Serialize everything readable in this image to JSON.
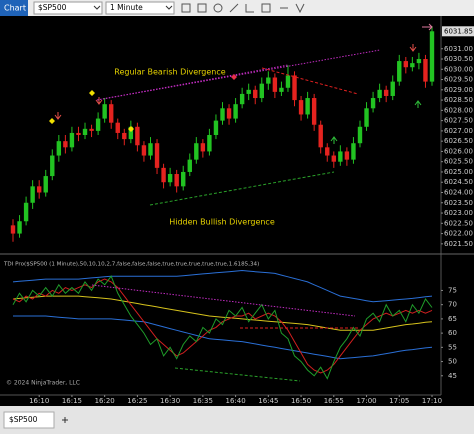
{
  "window": {
    "title": "Chart",
    "instrument": "$SP500",
    "interval": "1 Minute"
  },
  "tabs": [
    "$SP500"
  ],
  "chart_data": [
    {
      "type": "candlestick",
      "categories": [
        null,
        null,
        null,
        null,
        "16:10",
        null,
        null,
        null,
        null,
        "16:15",
        null,
        null,
        null,
        null,
        "16:20",
        null,
        null,
        null,
        null,
        "16:25",
        null,
        null,
        null,
        null,
        "16:30",
        null,
        null,
        null,
        null,
        "16:35",
        null,
        null,
        null,
        null,
        "16:40",
        null,
        null,
        null,
        null,
        "16:45",
        null,
        null,
        null,
        null,
        "16:50",
        null,
        null,
        null,
        null,
        "16:55",
        null,
        null,
        null,
        null,
        "17:00",
        null,
        null,
        null,
        null,
        "17:05",
        null,
        null,
        null,
        null,
        "17:10"
      ],
      "open": [
        6022.4,
        6022.0,
        6022.6,
        6023.5,
        6024.3,
        6024.0,
        6024.8,
        6025.8,
        6026.5,
        6026.2,
        6026.9,
        6026.8,
        6027.1,
        6027.0,
        6027.6,
        6028.3,
        6027.4,
        6026.9,
        6026.6,
        6027.2,
        6026.3,
        6025.8,
        6026.4,
        6025.2,
        6024.5,
        6024.9,
        6024.3,
        6025.0,
        6025.6,
        6026.4,
        6026.0,
        6026.8,
        6027.5,
        6028.1,
        6027.6,
        6028.3,
        6028.8,
        6029.0,
        6028.6,
        6029.3,
        6029.6,
        6028.9,
        6029.1,
        6029.7,
        6028.5,
        6027.8,
        6028.6,
        6027.3,
        6026.2,
        6025.8,
        6025.5,
        6026.0,
        6025.6,
        6026.4,
        6027.2,
        6028.1,
        6028.6,
        6029.0,
        6028.7,
        6029.4,
        6030.4,
        6030.1,
        6030.3,
        6030.5,
        6029.4
      ],
      "close": [
        6022.0,
        6022.6,
        6023.5,
        6024.3,
        6024.0,
        6024.8,
        6025.8,
        6026.5,
        6026.2,
        6026.9,
        6026.8,
        6027.1,
        6027.0,
        6027.6,
        6028.3,
        6027.4,
        6026.9,
        6026.6,
        6027.2,
        6026.3,
        6025.8,
        6026.4,
        6025.2,
        6024.5,
        6024.9,
        6024.3,
        6025.0,
        6025.6,
        6026.4,
        6026.0,
        6026.8,
        6027.5,
        6028.1,
        6027.6,
        6028.3,
        6028.8,
        6029.0,
        6028.6,
        6029.3,
        6029.6,
        6028.9,
        6029.1,
        6029.7,
        6028.5,
        6027.8,
        6028.6,
        6027.3,
        6026.2,
        6025.8,
        6025.5,
        6026.0,
        6025.6,
        6026.4,
        6027.2,
        6028.1,
        6028.6,
        6029.0,
        6028.7,
        6029.4,
        6030.4,
        6030.1,
        6030.3,
        6030.5,
        6029.4,
        6031.85
      ],
      "high": [
        6022.7,
        6022.9,
        6023.8,
        6024.6,
        6024.6,
        6025.1,
        6026.1,
        6026.8,
        6026.8,
        6027.2,
        6027.2,
        6027.4,
        6027.3,
        6027.9,
        6028.6,
        6028.5,
        6027.6,
        6027.1,
        6027.5,
        6027.4,
        6026.5,
        6026.7,
        6026.6,
        6025.4,
        6025.2,
        6025.1,
        6025.3,
        6025.9,
        6026.7,
        6026.6,
        6027.1,
        6027.8,
        6028.4,
        6028.3,
        6028.6,
        6029.1,
        6029.3,
        6029.2,
        6029.6,
        6029.9,
        6029.8,
        6029.4,
        6030.2,
        6029.9,
        6028.7,
        6028.9,
        6028.8,
        6027.5,
        6026.4,
        6026.0,
        6026.3,
        6026.2,
        6026.7,
        6027.5,
        6028.4,
        6028.9,
        6029.3,
        6029.2,
        6029.7,
        6030.7,
        6030.6,
        6030.6,
        6030.8,
        6030.7,
        6032.1
      ],
      "low": [
        6021.6,
        6021.8,
        6022.4,
        6023.2,
        6023.7,
        6023.8,
        6024.6,
        6025.5,
        6025.9,
        6026.0,
        6026.5,
        6026.6,
        6026.7,
        6026.8,
        6027.4,
        6027.1,
        6026.6,
        6026.3,
        6026.4,
        6026.0,
        6025.5,
        6025.6,
        6024.9,
        6024.2,
        6024.3,
        6024.0,
        6024.1,
        6024.8,
        6025.4,
        6025.7,
        6025.8,
        6026.6,
        6027.3,
        6027.3,
        6027.4,
        6028.1,
        6028.5,
        6028.3,
        6028.4,
        6029.0,
        6028.6,
        6028.7,
        6028.9,
        6028.2,
        6027.5,
        6027.6,
        6027.0,
        6025.9,
        6025.5,
        6025.2,
        6025.3,
        6025.3,
        6025.4,
        6026.2,
        6027.0,
        6027.9,
        6028.4,
        6028.4,
        6028.5,
        6029.2,
        6029.8,
        6029.9,
        6030.0,
        6029.1,
        6029.2
      ],
      "up_color": "#22c322",
      "down_color": "#e5231f",
      "last_price": 6031.85,
      "ylim": [
        6021.2,
        6032.4
      ],
      "yticks": [
        {
          "value": 6021.5,
          "label": "6021.50"
        },
        {
          "value": 6022.0,
          "label": "6022.00"
        },
        {
          "value": 6022.5,
          "label": "6022.50"
        },
        {
          "value": 6023.0,
          "label": "6023.00"
        },
        {
          "value": 6023.5,
          "label": "6023.50"
        },
        {
          "value": 6024.0,
          "label": "6024.00"
        },
        {
          "value": 6024.5,
          "label": "6024.50"
        },
        {
          "value": 6025.0,
          "label": "6025.00"
        },
        {
          "value": 6025.5,
          "label": "6025.50"
        },
        {
          "value": 6026.0,
          "label": "6026.00"
        },
        {
          "value": 6026.5,
          "label": "6026.50"
        },
        {
          "value": 6027.0,
          "label": "6027.00"
        },
        {
          "value": 6027.5,
          "label": "6027.50"
        },
        {
          "value": 6028.0,
          "label": "6028.00"
        },
        {
          "value": 6028.5,
          "label": "6028.50"
        },
        {
          "value": 6029.0,
          "label": "6029.00"
        },
        {
          "value": 6029.5,
          "label": "6029.50"
        },
        {
          "value": 6030.0,
          "label": "6030.00"
        },
        {
          "value": 6030.5,
          "label": "6030.50"
        },
        {
          "value": 6031.0,
          "label": "6031.00"
        }
      ],
      "annotations": [
        "Regular Bearish Divergence",
        "Hidden Bullish Divergence"
      ]
    },
    {
      "type": "line",
      "title": "TDI Pro($SP500 (1 Minute),50,10,10,2,7,false,false,false,true,true,true,true,true,1.6185,34)",
      "copyright": "© 2024 NinjaTrader, LLC",
      "ylim": [
        40,
        85
      ],
      "yticks": [
        45,
        50,
        55,
        60,
        65,
        70,
        75
      ],
      "series": [
        {
          "color": "#2a6fd6",
          "values": [
            78,
            78.2,
            78.4,
            78.6,
            78.8,
            79,
            79,
            79,
            79,
            79,
            79,
            79.2,
            79.4,
            79.6,
            79.8,
            80,
            80,
            80,
            80,
            80,
            80,
            80,
            80,
            80,
            80,
            80,
            80.2,
            80.4,
            80.6,
            80.8,
            81,
            81.2,
            81.4,
            81.6,
            81.8,
            82,
            81.8,
            81.6,
            81.4,
            81.2,
            81,
            80.4,
            79.8,
            79.2,
            78.6,
            78,
            77,
            76,
            75,
            74,
            73,
            72.6,
            72.2,
            71.8,
            71.4,
            71,
            71.2,
            71.4,
            71.6,
            71.8,
            72,
            72.2,
            72.5,
            72.8,
            73
          ]
        },
        {
          "color": "#2a6fd6",
          "values": [
            66,
            66,
            66,
            66,
            66,
            66,
            65.8,
            65.6,
            65.4,
            65.2,
            65,
            65,
            65,
            65,
            65,
            65,
            64.8,
            64.6,
            64.4,
            64.2,
            64,
            63.4,
            62.8,
            62.2,
            61.6,
            61,
            60.4,
            59.8,
            59.2,
            58.6,
            58,
            57.8,
            57.6,
            57.4,
            57.2,
            57,
            56.6,
            56.2,
            55.8,
            55.4,
            55,
            54.6,
            54.2,
            53.8,
            53.4,
            53,
            52.6,
            52.2,
            51.8,
            51.4,
            51,
            51.2,
            51.4,
            51.6,
            51.8,
            52,
            52.4,
            52.8,
            53.2,
            53.6,
            54,
            54.2,
            54.5,
            54.8,
            55
          ]
        },
        {
          "color": "#d6c21c",
          "values": [
            72,
            72.2,
            72.4,
            72.6,
            72.8,
            73,
            73,
            73,
            73,
            73,
            73,
            72.8,
            72.6,
            72.4,
            72.2,
            72,
            71.6,
            71.2,
            70.8,
            70.4,
            70,
            69.6,
            69.2,
            68.8,
            68.4,
            68,
            67.6,
            67.2,
            66.8,
            66.4,
            66,
            65.8,
            65.6,
            65.4,
            65.2,
            65,
            64.8,
            64.6,
            64.4,
            64.2,
            64,
            63.8,
            63.6,
            63.4,
            63.2,
            63,
            62.6,
            62.2,
            61.8,
            61.4,
            61,
            61,
            61,
            61,
            61,
            61,
            61.4,
            61.8,
            62.2,
            62.6,
            63,
            63.2,
            63.5,
            63.8,
            64
          ]
        },
        {
          "color": "#d11f1f",
          "values": [
            72,
            71,
            73,
            72,
            74,
            73,
            75,
            74,
            76,
            75,
            76,
            77,
            76,
            78,
            79,
            78,
            76,
            73,
            70,
            67,
            64,
            61,
            58,
            56,
            54,
            52,
            53,
            55,
            57,
            59,
            61,
            62,
            64,
            65,
            66,
            66,
            67,
            65,
            66,
            67,
            66,
            64,
            61,
            57,
            53,
            49,
            47,
            46,
            47,
            49,
            52,
            55,
            58,
            61,
            63,
            65,
            66,
            67,
            66,
            67,
            68,
            67,
            68,
            67,
            68
          ]
        },
        {
          "color": "#1f9d2a",
          "values": [
            70,
            74,
            71,
            75,
            73,
            76,
            73,
            77,
            74,
            76,
            74,
            78,
            75,
            79,
            77,
            80,
            74,
            70,
            66,
            63,
            60,
            56,
            58,
            52,
            55,
            51,
            56,
            59,
            57,
            62,
            60,
            65,
            63,
            68,
            66,
            69,
            64,
            67,
            70,
            65,
            68,
            60,
            58,
            52,
            50,
            47,
            45,
            48,
            44,
            50,
            55,
            58,
            62,
            59,
            65,
            67,
            64,
            70,
            66,
            68,
            64,
            70,
            67,
            72,
            69
          ]
        }
      ]
    }
  ]
}
